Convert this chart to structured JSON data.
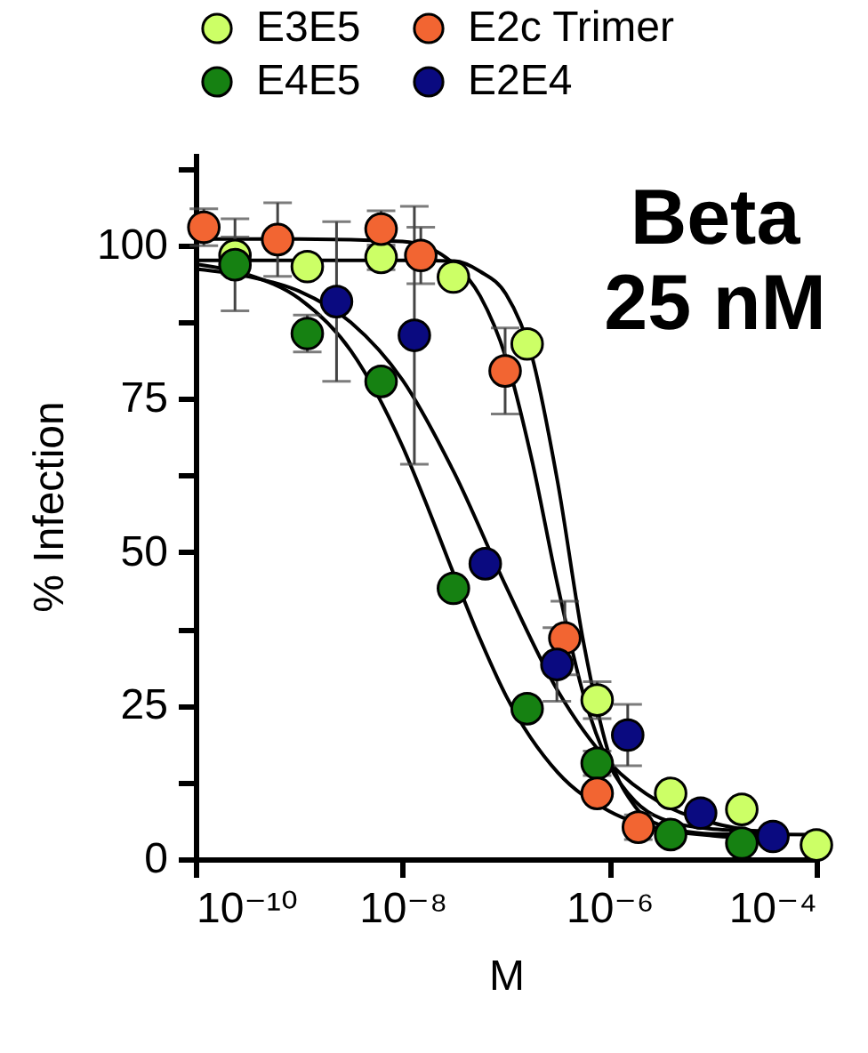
{
  "chart_data": {
    "type": "scatter",
    "xlabel": "M",
    "ylabel": "% Infection",
    "annotations": [
      "Beta",
      "25 nM"
    ],
    "log": "x",
    "marker": "circle",
    "legend": "top",
    "grid": false,
    "xlim": [
      1e-10,
      0.0001
    ],
    "xticks": [
      {
        "value": 1e-10,
        "label": "10⁻¹⁰"
      },
      {
        "value": 1e-08,
        "label": "10⁻⁸"
      },
      {
        "value": 1e-06,
        "label": "10⁻⁶"
      },
      {
        "value": 0.0001,
        "label": "10⁻⁴"
      }
    ],
    "ylim": [
      0,
      115
    ],
    "yticks": [
      0,
      {
        "value": 12.5,
        "label": null
      },
      25,
      {
        "value": 37.5,
        "label": null
      },
      50,
      {
        "value": 62.5,
        "label": null
      },
      75,
      {
        "value": 87.5,
        "label": null
      },
      100,
      {
        "value": 112.5,
        "label": null
      }
    ],
    "series": [
      {
        "type": "line",
        "marker": "none",
        "color": "#000000",
        "x": [
          1e-10,
          1e-09,
          1e-08,
          3.162e-08,
          5.623e-08,
          1e-07,
          1.778e-07,
          3.162e-07,
          5.623e-07,
          1e-06,
          1.778e-06,
          3.162e-06,
          1e-05,
          0.0001
        ],
        "values": [
          97.5,
          97.5,
          97.5,
          97.4,
          95.7,
          92,
          81.9,
          61.3,
          35.2,
          16.8,
          8.5,
          5.5,
          4.1,
          4
        ]
      },
      {
        "type": "line",
        "marker": "none",
        "color": "#000000",
        "x": [
          1e-10,
          1e-09,
          1e-08,
          3.162e-08,
          5.623e-08,
          1e-07,
          1.778e-07,
          3.162e-07,
          5.623e-07,
          1e-06,
          1.778e-06,
          3.162e-06,
          1e-05,
          3.162e-05
        ],
        "values": [
          101,
          101,
          100.6,
          96.9,
          91.7,
          81.6,
          65,
          44.5,
          26.7,
          15.3,
          9.4,
          6.6,
          4.9,
          4.6
        ]
      },
      {
        "type": "line",
        "marker": "none",
        "color": "#000000",
        "x": [
          1e-10,
          3.162e-10,
          1e-09,
          3.162e-09,
          1e-08,
          1.778e-08,
          3.162e-08,
          5.623e-08,
          1e-07,
          3.162e-07,
          1e-06,
          3.162e-06,
          1e-05,
          3.162e-05
        ],
        "values": [
          96.9,
          95.2,
          91.3,
          82.8,
          67.2,
          57,
          46.2,
          35.8,
          26.6,
          14.1,
          7.8,
          4.9,
          3.8,
          3.3
        ]
      },
      {
        "type": "line",
        "marker": "none",
        "color": "#000000",
        "x": [
          1e-10,
          3.162e-10,
          1e-09,
          3.162e-09,
          1e-08,
          3.162e-08,
          1e-07,
          3.162e-07,
          1e-06,
          3.162e-06,
          1e-05,
          3.162e-05
        ],
        "values": [
          96.1,
          94.9,
          92.5,
          87.4,
          78,
          62.9,
          44.4,
          27.4,
          15.7,
          9.1,
          5.9,
          4.3
        ]
      },
      {
        "name": "E3E5",
        "color": "#ccff66",
        "x": [
          2.4e-10,
          1.2e-09,
          6.2e-09,
          3.1e-08,
          1.6e-07,
          7.6e-07,
          3.9e-06,
          1.9e-05,
          0.0001
        ],
        "values": [
          98.3,
          96.5,
          98,
          94.8,
          83.9,
          25.9,
          10.7,
          8.1,
          2.3
        ],
        "errors": [
          3,
          null,
          2,
          null,
          null,
          3,
          null,
          null,
          null
        ]
      },
      {
        "name": "E4E5",
        "color": "#168112",
        "x": [
          2.4e-10,
          1.2e-09,
          6.2e-09,
          3.1e-08,
          1.6e-07,
          7.6e-07,
          3.9e-06,
          1.9e-05
        ],
        "values": [
          96.8,
          85.6,
          77.8,
          44.1,
          24.5,
          15.6,
          4,
          2.6
        ],
        "errors": [
          7.5,
          3,
          null,
          null,
          null,
          2,
          null,
          null
        ]
      },
      {
        "name": "E2c Trimer",
        "color": "#f26532",
        "x": [
          1.2e-10,
          6.2e-10,
          6.2e-09,
          1.5e-08,
          9.8e-08,
          3.7e-07,
          7.6e-07,
          1.9e-06
        ],
        "values": [
          102.9,
          100.9,
          102.6,
          98.3,
          79.5,
          36,
          10.7,
          5.2
        ],
        "errors": [
          3,
          6,
          3,
          4.6,
          7,
          6,
          null,
          2
        ]
      },
      {
        "name": "E2E4",
        "color": "#0a0a80",
        "x": [
          2.3e-09,
          1.3e-08,
          6.3e-08,
          3.1e-07,
          1.5e-06,
          7.6e-06,
          3.8e-05
        ],
        "values": [
          90.8,
          85.3,
          48.1,
          31.7,
          20.2,
          7.5,
          3.7
        ],
        "errors": [
          13,
          21,
          null,
          6,
          5,
          null,
          null
        ]
      }
    ]
  }
}
